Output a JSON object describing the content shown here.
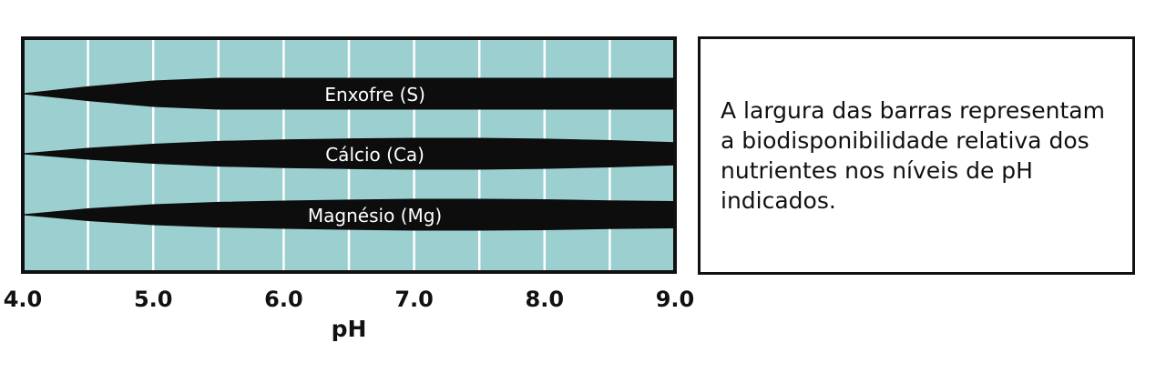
{
  "chart_data": {
    "type": "area",
    "title": "",
    "xlabel": "pH",
    "ylabel": "",
    "xlim": [
      4.0,
      9.0
    ],
    "x_ticks": [
      "4.0",
      "5.0",
      "6.0",
      "7.0",
      "8.0",
      "9.0"
    ],
    "gridlines_x": [
      4.5,
      5.0,
      5.5,
      6.0,
      6.5,
      7.0,
      7.5,
      8.0,
      8.5
    ],
    "series": [
      {
        "name": "Enxofre (S)",
        "x": [
          4.0,
          4.5,
          5.0,
          5.5,
          6.0,
          6.5,
          7.0,
          7.5,
          8.0,
          8.5,
          9.0
        ],
        "relative_width": [
          0.0,
          0.45,
          0.82,
          1.0,
          1.0,
          1.0,
          1.0,
          1.0,
          1.0,
          1.0,
          1.0
        ]
      },
      {
        "name": "Cálcio (Ca)",
        "x": [
          4.0,
          4.5,
          5.0,
          5.5,
          6.0,
          6.5,
          7.0,
          7.5,
          8.0,
          8.5,
          9.0
        ],
        "relative_width": [
          0.0,
          0.35,
          0.62,
          0.8,
          0.9,
          0.96,
          1.0,
          1.0,
          0.95,
          0.85,
          0.72
        ]
      },
      {
        "name": "Magnésio (Mg)",
        "x": [
          4.0,
          4.5,
          5.0,
          5.5,
          6.0,
          6.5,
          7.0,
          7.5,
          8.0,
          8.5,
          9.0
        ],
        "relative_width": [
          0.0,
          0.38,
          0.65,
          0.8,
          0.88,
          0.95,
          1.0,
          1.0,
          0.97,
          0.9,
          0.85
        ]
      }
    ],
    "colors": {
      "background": "#9ccfcf",
      "bars": "#0d0d0d",
      "gridlines": "#ffffff",
      "bar_label": "#ffffff",
      "frame": "#111111"
    }
  },
  "legend": {
    "text": "A largura das barras representam a biodisponibilidade relativa dos nutrientes nos níveis de pH indicados."
  }
}
